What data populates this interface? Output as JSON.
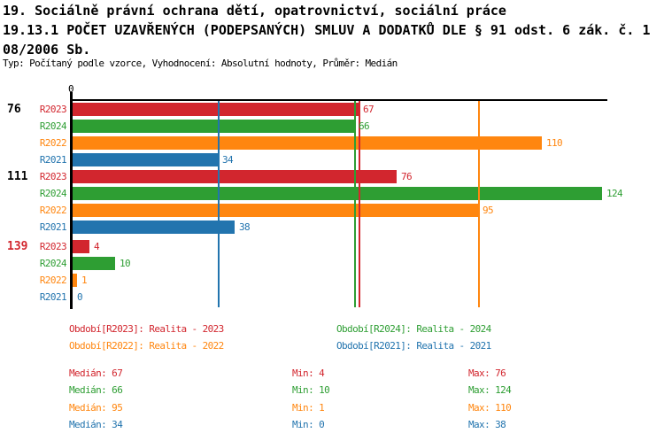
{
  "header": {
    "line1": "19. Sociálně právní ochrana dětí, opatrovnictví, sociální práce",
    "line2": "19.13.1 POČET UZAVŘENÝCH (PODEPSANÝCH) SMLUV A DODATKŮ DLE § 91 odst. 6 zák. č. 1",
    "line2_wrap": "08/2006 Sb.",
    "meta": "Typ: Počítaný podle vzorce, Vyhodnocení: Absolutní hodnoty, Průměr: Medián"
  },
  "chart_data": {
    "type": "bar",
    "orientation": "horizontal",
    "title": "19.13.1 POČET UZAVŘENÝCH (PODEPSANÝCH) SMLUV A DODATKŮ DLE § 91 odst. 6 zák. č. 108/2006 Sb.",
    "axis": {
      "zero_label": "0",
      "x_min": 0,
      "x_max": 124,
      "grid": false
    },
    "series_order": [
      "R2023",
      "R2024",
      "R2022",
      "R2021"
    ],
    "colors": {
      "R2023": "#d2262e",
      "R2024": "#2e9e33",
      "R2022": "#ff860f",
      "R2021": "#2274ae",
      "axis": "#000000"
    },
    "groups": [
      {
        "label": "76",
        "label_color": "#000000",
        "values": {
          "R2023": 67,
          "R2024": 66,
          "R2022": 110,
          "R2021": 34
        }
      },
      {
        "label": "111",
        "label_color": "#000000",
        "values": {
          "R2023": 76,
          "R2024": 124,
          "R2022": 95,
          "R2021": 38
        }
      },
      {
        "label": "139",
        "label_color": "#d2262e",
        "values": {
          "R2023": 4,
          "R2024": 10,
          "R2022": 1,
          "R2021": 0
        }
      }
    ],
    "median_lines": {
      "R2023": 67,
      "R2024": 66,
      "R2022": 95,
      "R2021": 34
    }
  },
  "legend": {
    "items": [
      {
        "series": "R2023",
        "text": "Období[R2023]: Realita - 2023"
      },
      {
        "series": "R2024",
        "text": "Období[R2024]: Realita - 2024"
      },
      {
        "series": "R2022",
        "text": "Období[R2022]: Realita - 2022"
      },
      {
        "series": "R2021",
        "text": "Období[R2021]: Realita - 2021"
      }
    ]
  },
  "stats": {
    "rows": [
      {
        "series": "R2023",
        "median": "Medián: 67",
        "min": "Min: 4",
        "max": "Max: 76"
      },
      {
        "series": "R2024",
        "median": "Medián: 66",
        "min": "Min: 10",
        "max": "Max: 124"
      },
      {
        "series": "R2022",
        "median": "Medián: 95",
        "min": "Min: 1",
        "max": "Max: 110"
      },
      {
        "series": "R2021",
        "median": "Medián: 34",
        "min": "Min: 0",
        "max": "Max: 38"
      }
    ]
  }
}
